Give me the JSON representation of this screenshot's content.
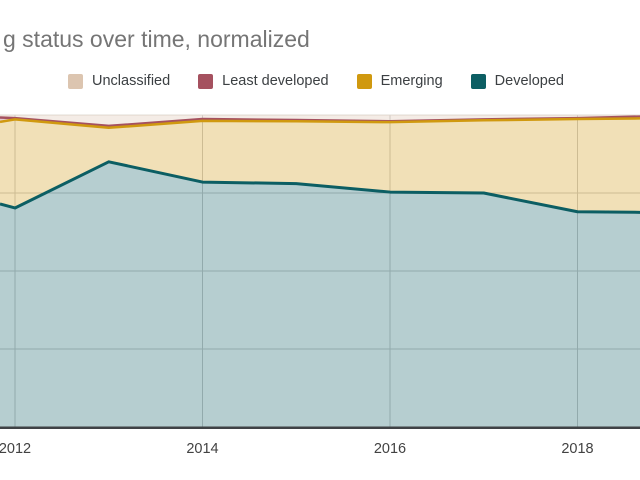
{
  "title": "g status over time, normalized",
  "legend": {
    "items": [
      {
        "label": "Unclassified",
        "color": "#dcc5b0"
      },
      {
        "label": "Least developed",
        "color": "#a5515f"
      },
      {
        "label": "Emerging",
        "color": "#d0990f"
      },
      {
        "label": "Developed",
        "color": "#0c5e63"
      }
    ]
  },
  "x_axis": {
    "labels": [
      "2012",
      "2014",
      "2016",
      "2018"
    ]
  },
  "colors": {
    "grid": "#cccccc",
    "plot_top_line": "#e2dcd5",
    "axis_line": "#3f4245",
    "title_text": "#757575",
    "axis_text": "#424242",
    "legend_text": "#3c4043"
  },
  "chart_data": {
    "type": "area",
    "stacking": "normalized_percent",
    "title": "g status over time, normalized",
    "xlabel": "",
    "ylabel": "",
    "ylim": [
      0,
      100
    ],
    "grid": true,
    "legend_position": "top",
    "x_visible_range": [
      2011.84,
      2018.67
    ],
    "x_tick_years": [
      2012,
      2014,
      2016,
      2018
    ],
    "y_gridline_pcts": [
      25,
      50,
      75
    ],
    "x": [
      2011.84,
      2012,
      2013,
      2014,
      2015,
      2016,
      2017,
      2018,
      2018.67
    ],
    "series": [
      {
        "name": "Developed",
        "line_color": "#0c5e63",
        "fill_opacity": 0.3,
        "stroke_width": 3,
        "values": [
          71.5,
          70.2,
          85.0,
          78.5,
          78.0,
          75.3,
          75.0,
          69.0,
          68.8
        ]
      },
      {
        "name": "Emerging",
        "line_color": "#d0990f",
        "fill_opacity": 0.3,
        "stroke_width": 2.5,
        "values": [
          26.3,
          28.4,
          10.9,
          19.6,
          20.0,
          22.4,
          23.3,
          29.7,
          30.1
        ]
      },
      {
        "name": "Least developed",
        "line_color": "#a5515f",
        "fill_opacity": 0.3,
        "stroke_width": 2.5,
        "values": [
          1.4,
          0.4,
          0.6,
          0.6,
          0.4,
          0.3,
          0.3,
          0.3,
          0.6
        ]
      },
      {
        "name": "Unclassified",
        "line_color": "#dcc5b0",
        "fill_opacity": 0.32,
        "stroke_width": 0,
        "values": [
          0.8,
          1.0,
          3.5,
          1.3,
          1.6,
          2.0,
          1.4,
          1.0,
          0.5
        ]
      }
    ]
  }
}
